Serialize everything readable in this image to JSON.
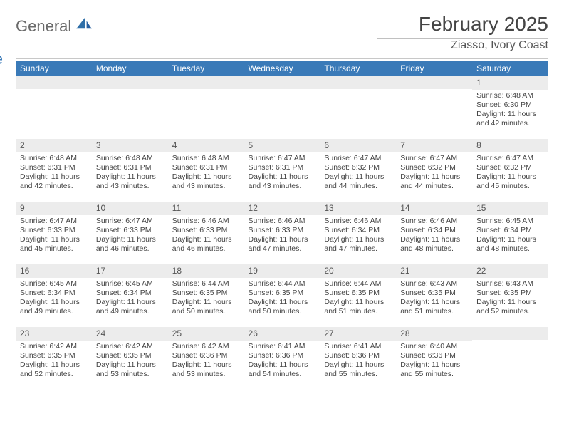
{
  "brand": {
    "word1": "General",
    "word2": "Blue",
    "icon_fill": "#2f6fa8"
  },
  "title": {
    "month": "February 2025",
    "location": "Ziasso, Ivory Coast"
  },
  "colors": {
    "header_bg": "#3a7ab8",
    "header_text": "#ffffff",
    "daynum_bg": "#ececec",
    "text": "#444444",
    "background": "#ffffff"
  },
  "weekdays": [
    "Sunday",
    "Monday",
    "Tuesday",
    "Wednesday",
    "Thursday",
    "Friday",
    "Saturday"
  ],
  "weeks": [
    [
      {
        "n": "",
        "sr": "",
        "ss": "",
        "dl": ""
      },
      {
        "n": "",
        "sr": "",
        "ss": "",
        "dl": ""
      },
      {
        "n": "",
        "sr": "",
        "ss": "",
        "dl": ""
      },
      {
        "n": "",
        "sr": "",
        "ss": "",
        "dl": ""
      },
      {
        "n": "",
        "sr": "",
        "ss": "",
        "dl": ""
      },
      {
        "n": "",
        "sr": "",
        "ss": "",
        "dl": ""
      },
      {
        "n": "1",
        "sr": "Sunrise: 6:48 AM",
        "ss": "Sunset: 6:30 PM",
        "dl": "Daylight: 11 hours and 42 minutes."
      }
    ],
    [
      {
        "n": "2",
        "sr": "Sunrise: 6:48 AM",
        "ss": "Sunset: 6:31 PM",
        "dl": "Daylight: 11 hours and 42 minutes."
      },
      {
        "n": "3",
        "sr": "Sunrise: 6:48 AM",
        "ss": "Sunset: 6:31 PM",
        "dl": "Daylight: 11 hours and 43 minutes."
      },
      {
        "n": "4",
        "sr": "Sunrise: 6:48 AM",
        "ss": "Sunset: 6:31 PM",
        "dl": "Daylight: 11 hours and 43 minutes."
      },
      {
        "n": "5",
        "sr": "Sunrise: 6:47 AM",
        "ss": "Sunset: 6:31 PM",
        "dl": "Daylight: 11 hours and 43 minutes."
      },
      {
        "n": "6",
        "sr": "Sunrise: 6:47 AM",
        "ss": "Sunset: 6:32 PM",
        "dl": "Daylight: 11 hours and 44 minutes."
      },
      {
        "n": "7",
        "sr": "Sunrise: 6:47 AM",
        "ss": "Sunset: 6:32 PM",
        "dl": "Daylight: 11 hours and 44 minutes."
      },
      {
        "n": "8",
        "sr": "Sunrise: 6:47 AM",
        "ss": "Sunset: 6:32 PM",
        "dl": "Daylight: 11 hours and 45 minutes."
      }
    ],
    [
      {
        "n": "9",
        "sr": "Sunrise: 6:47 AM",
        "ss": "Sunset: 6:33 PM",
        "dl": "Daylight: 11 hours and 45 minutes."
      },
      {
        "n": "10",
        "sr": "Sunrise: 6:47 AM",
        "ss": "Sunset: 6:33 PM",
        "dl": "Daylight: 11 hours and 46 minutes."
      },
      {
        "n": "11",
        "sr": "Sunrise: 6:46 AM",
        "ss": "Sunset: 6:33 PM",
        "dl": "Daylight: 11 hours and 46 minutes."
      },
      {
        "n": "12",
        "sr": "Sunrise: 6:46 AM",
        "ss": "Sunset: 6:33 PM",
        "dl": "Daylight: 11 hours and 47 minutes."
      },
      {
        "n": "13",
        "sr": "Sunrise: 6:46 AM",
        "ss": "Sunset: 6:34 PM",
        "dl": "Daylight: 11 hours and 47 minutes."
      },
      {
        "n": "14",
        "sr": "Sunrise: 6:46 AM",
        "ss": "Sunset: 6:34 PM",
        "dl": "Daylight: 11 hours and 48 minutes."
      },
      {
        "n": "15",
        "sr": "Sunrise: 6:45 AM",
        "ss": "Sunset: 6:34 PM",
        "dl": "Daylight: 11 hours and 48 minutes."
      }
    ],
    [
      {
        "n": "16",
        "sr": "Sunrise: 6:45 AM",
        "ss": "Sunset: 6:34 PM",
        "dl": "Daylight: 11 hours and 49 minutes."
      },
      {
        "n": "17",
        "sr": "Sunrise: 6:45 AM",
        "ss": "Sunset: 6:34 PM",
        "dl": "Daylight: 11 hours and 49 minutes."
      },
      {
        "n": "18",
        "sr": "Sunrise: 6:44 AM",
        "ss": "Sunset: 6:35 PM",
        "dl": "Daylight: 11 hours and 50 minutes."
      },
      {
        "n": "19",
        "sr": "Sunrise: 6:44 AM",
        "ss": "Sunset: 6:35 PM",
        "dl": "Daylight: 11 hours and 50 minutes."
      },
      {
        "n": "20",
        "sr": "Sunrise: 6:44 AM",
        "ss": "Sunset: 6:35 PM",
        "dl": "Daylight: 11 hours and 51 minutes."
      },
      {
        "n": "21",
        "sr": "Sunrise: 6:43 AM",
        "ss": "Sunset: 6:35 PM",
        "dl": "Daylight: 11 hours and 51 minutes."
      },
      {
        "n": "22",
        "sr": "Sunrise: 6:43 AM",
        "ss": "Sunset: 6:35 PM",
        "dl": "Daylight: 11 hours and 52 minutes."
      }
    ],
    [
      {
        "n": "23",
        "sr": "Sunrise: 6:42 AM",
        "ss": "Sunset: 6:35 PM",
        "dl": "Daylight: 11 hours and 52 minutes."
      },
      {
        "n": "24",
        "sr": "Sunrise: 6:42 AM",
        "ss": "Sunset: 6:35 PM",
        "dl": "Daylight: 11 hours and 53 minutes."
      },
      {
        "n": "25",
        "sr": "Sunrise: 6:42 AM",
        "ss": "Sunset: 6:36 PM",
        "dl": "Daylight: 11 hours and 53 minutes."
      },
      {
        "n": "26",
        "sr": "Sunrise: 6:41 AM",
        "ss": "Sunset: 6:36 PM",
        "dl": "Daylight: 11 hours and 54 minutes."
      },
      {
        "n": "27",
        "sr": "Sunrise: 6:41 AM",
        "ss": "Sunset: 6:36 PM",
        "dl": "Daylight: 11 hours and 55 minutes."
      },
      {
        "n": "28",
        "sr": "Sunrise: 6:40 AM",
        "ss": "Sunset: 6:36 PM",
        "dl": "Daylight: 11 hours and 55 minutes."
      },
      {
        "n": "",
        "sr": "",
        "ss": "",
        "dl": ""
      }
    ]
  ]
}
